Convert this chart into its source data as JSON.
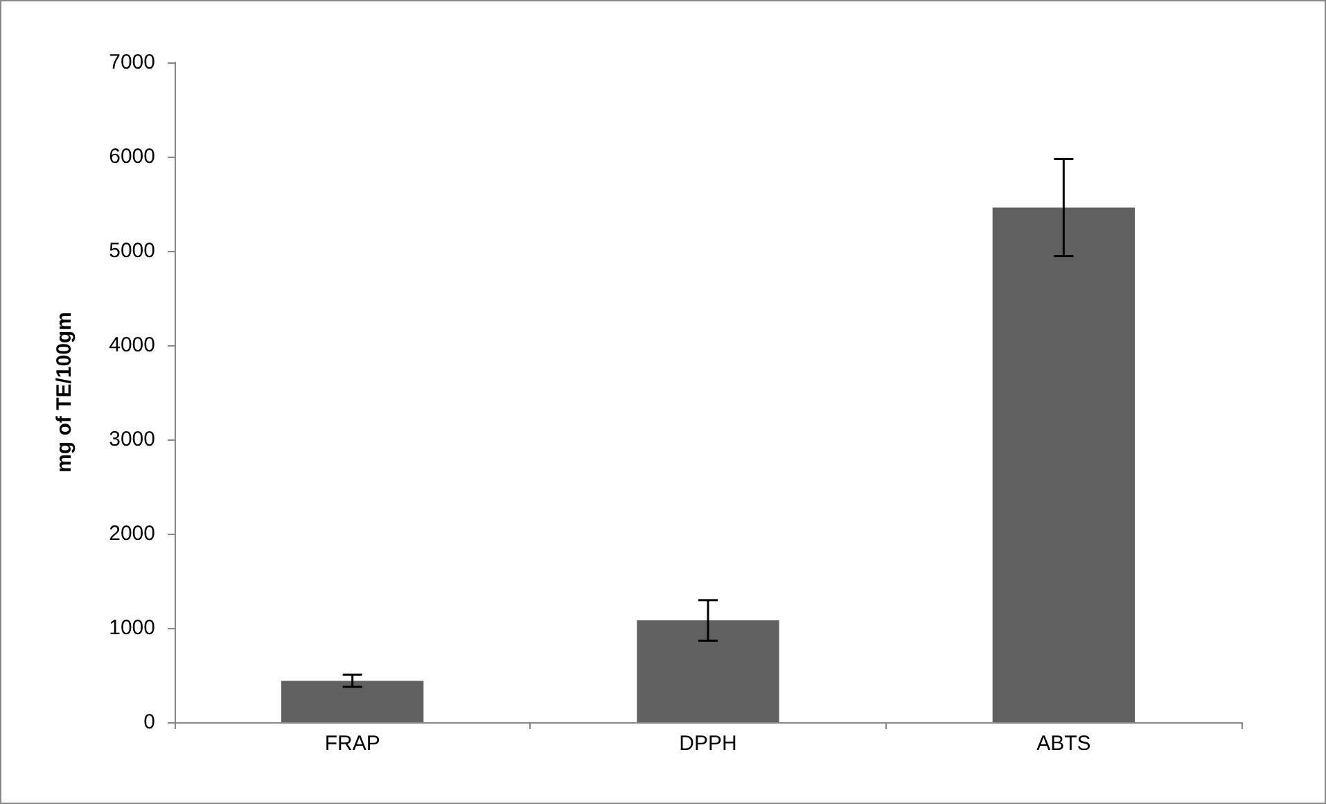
{
  "chart_data": {
    "type": "bar",
    "ylabel": "mg of TE/100gm",
    "categories": [
      "FRAP",
      "DPPH",
      "ABTS"
    ],
    "values": [
      440,
      1080,
      5460
    ],
    "errors": [
      65,
      215,
      515
    ],
    "color": "#606060",
    "ylim": [
      0,
      7000
    ],
    "yticks": [
      0,
      1000,
      2000,
      3000,
      4000,
      5000,
      6000,
      7000
    ],
    "grid": false
  }
}
